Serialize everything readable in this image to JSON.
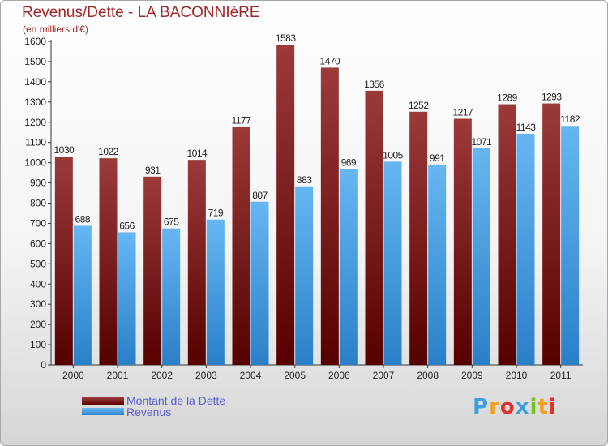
{
  "chart_data": {
    "type": "bar",
    "title": "Revenus/Dette - LA BACONNIèRE",
    "subtitle": "(en milliers d'€)",
    "xlabel": "",
    "ylabel": "",
    "ylim": [
      0,
      1600
    ],
    "yticks": [
      0,
      100,
      200,
      300,
      400,
      500,
      600,
      700,
      800,
      900,
      1000,
      1100,
      1200,
      1300,
      1400,
      1500,
      1600
    ],
    "categories": [
      "2000",
      "2001",
      "2002",
      "2003",
      "2004",
      "2005",
      "2006",
      "2007",
      "2008",
      "2009",
      "2010",
      "2011"
    ],
    "series": [
      {
        "name": "Montant de la Dette",
        "color": "#7a1a1a",
        "values": [
          1030,
          1022,
          931,
          1014,
          1177,
          1583,
          1470,
          1356,
          1252,
          1217,
          1289,
          1293
        ]
      },
      {
        "name": "Revenus",
        "color": "#4aa4ea",
        "values": [
          688,
          656,
          675,
          719,
          807,
          883,
          969,
          1005,
          991,
          1071,
          1143,
          1182
        ]
      }
    ],
    "legend_position": "bottom-left",
    "grid": false
  },
  "logo": {
    "letters": [
      "P",
      "r",
      "o",
      "x",
      "i",
      "t",
      "i"
    ],
    "colors": [
      "#3aa0e0",
      "#f0a020",
      "#e03030",
      "#3aa0e0",
      "#78c020",
      "#f0a020",
      "#e03030"
    ]
  }
}
